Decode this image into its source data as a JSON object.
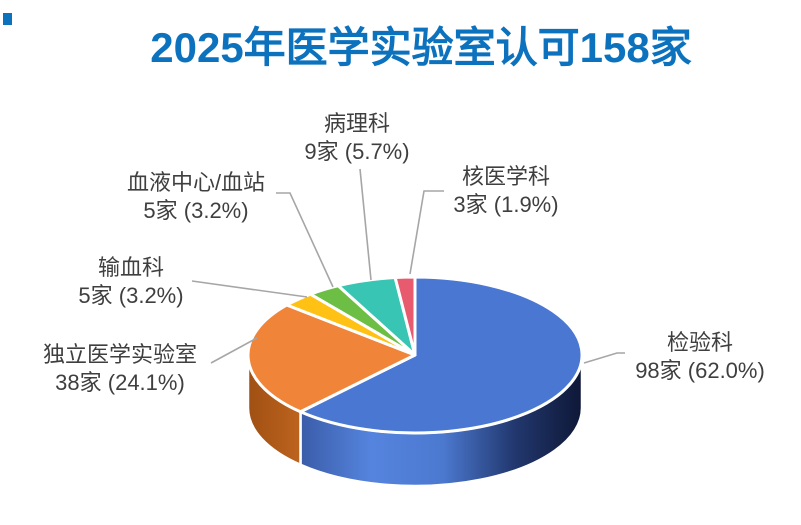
{
  "page": {
    "background": "#FFFFFF"
  },
  "title": {
    "text": "2025年医学实验室认可158家",
    "color": "#0C72BE"
  },
  "decorations": {
    "corner_square_color": "#0C72BE"
  },
  "chart_data": {
    "type": "pie",
    "style": "3d",
    "title": "2025年医学实验室认可158家",
    "total_count": 158,
    "unit": "家",
    "direction": "clockwise",
    "start_angle_deg": 0,
    "legend": "none",
    "label_format": "{label} / {count}家 ({pct}%)",
    "label_color": "#3F3F3F",
    "leader_line_color": "#A6A6A6",
    "slice_border_color": "#FFFFFF",
    "slices": [
      {
        "label": "检验科",
        "count": 98,
        "pct": 62.0,
        "value_text": "98家 (62.0%)",
        "color": "#4A77D2",
        "side_colors": [
          "#3A5CA8",
          "#5584DE",
          "#4C79D0",
          "#22386F",
          "#0D1634"
        ]
      },
      {
        "label": "独立医学实验室",
        "count": 38,
        "pct": 24.1,
        "value_text": "38家 (24.1%)",
        "color": "#F0853A",
        "side_colors": [
          "#9D4E12",
          "#C0651F"
        ]
      },
      {
        "label": "输血科",
        "count": 5,
        "pct": 3.2,
        "value_text": "5家 (3.2%)",
        "color": "#FFC114"
      },
      {
        "label": "血液中心/血站",
        "count": 5,
        "pct": 3.2,
        "value_text": "5家 (3.2%)",
        "color": "#6CBE44"
      },
      {
        "label": "病理科",
        "count": 9,
        "pct": 5.7,
        "value_text": "9家 (5.7%)",
        "color": "#38C5B3"
      },
      {
        "label": "核医学科",
        "count": 3,
        "pct": 1.9,
        "value_text": "3家 (1.9%)",
        "color": "#E85A6E"
      }
    ]
  }
}
